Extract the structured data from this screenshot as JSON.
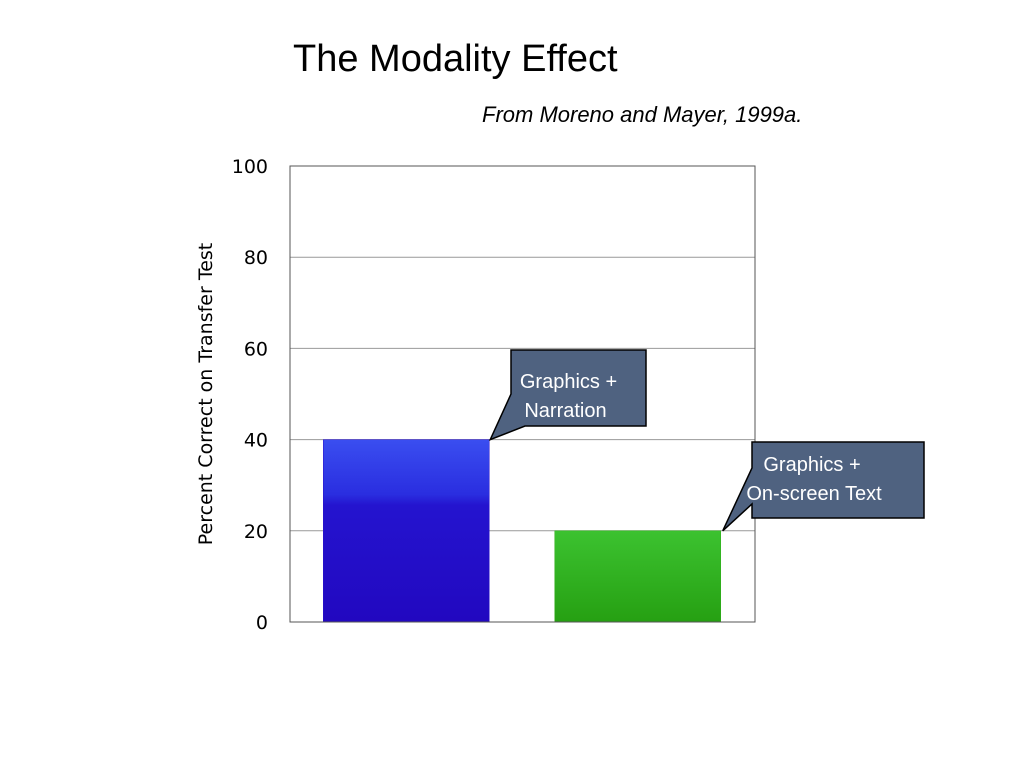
{
  "slide": {
    "title": "The Modality Effect",
    "subtitle": "From Moreno and Mayer, 1999a."
  },
  "chart_data": {
    "type": "bar",
    "categories": [
      "Graphics + Narration",
      "Graphics + On-screen Text"
    ],
    "values": [
      40,
      20
    ],
    "ylabel": "Percent Correct on Transfer Test",
    "xlabel": "",
    "ylim": [
      0,
      100
    ],
    "yticks": [
      0,
      20,
      40,
      60,
      80,
      100
    ],
    "grid": true,
    "bar_colors": [
      "#2a10cc",
      "#2fae1a"
    ],
    "callouts": [
      {
        "lines": [
          "Graphics +",
          "Narration"
        ]
      },
      {
        "lines": [
          "Graphics +",
          "On-screen Text"
        ]
      }
    ],
    "callout_fill": "#4f6280"
  }
}
